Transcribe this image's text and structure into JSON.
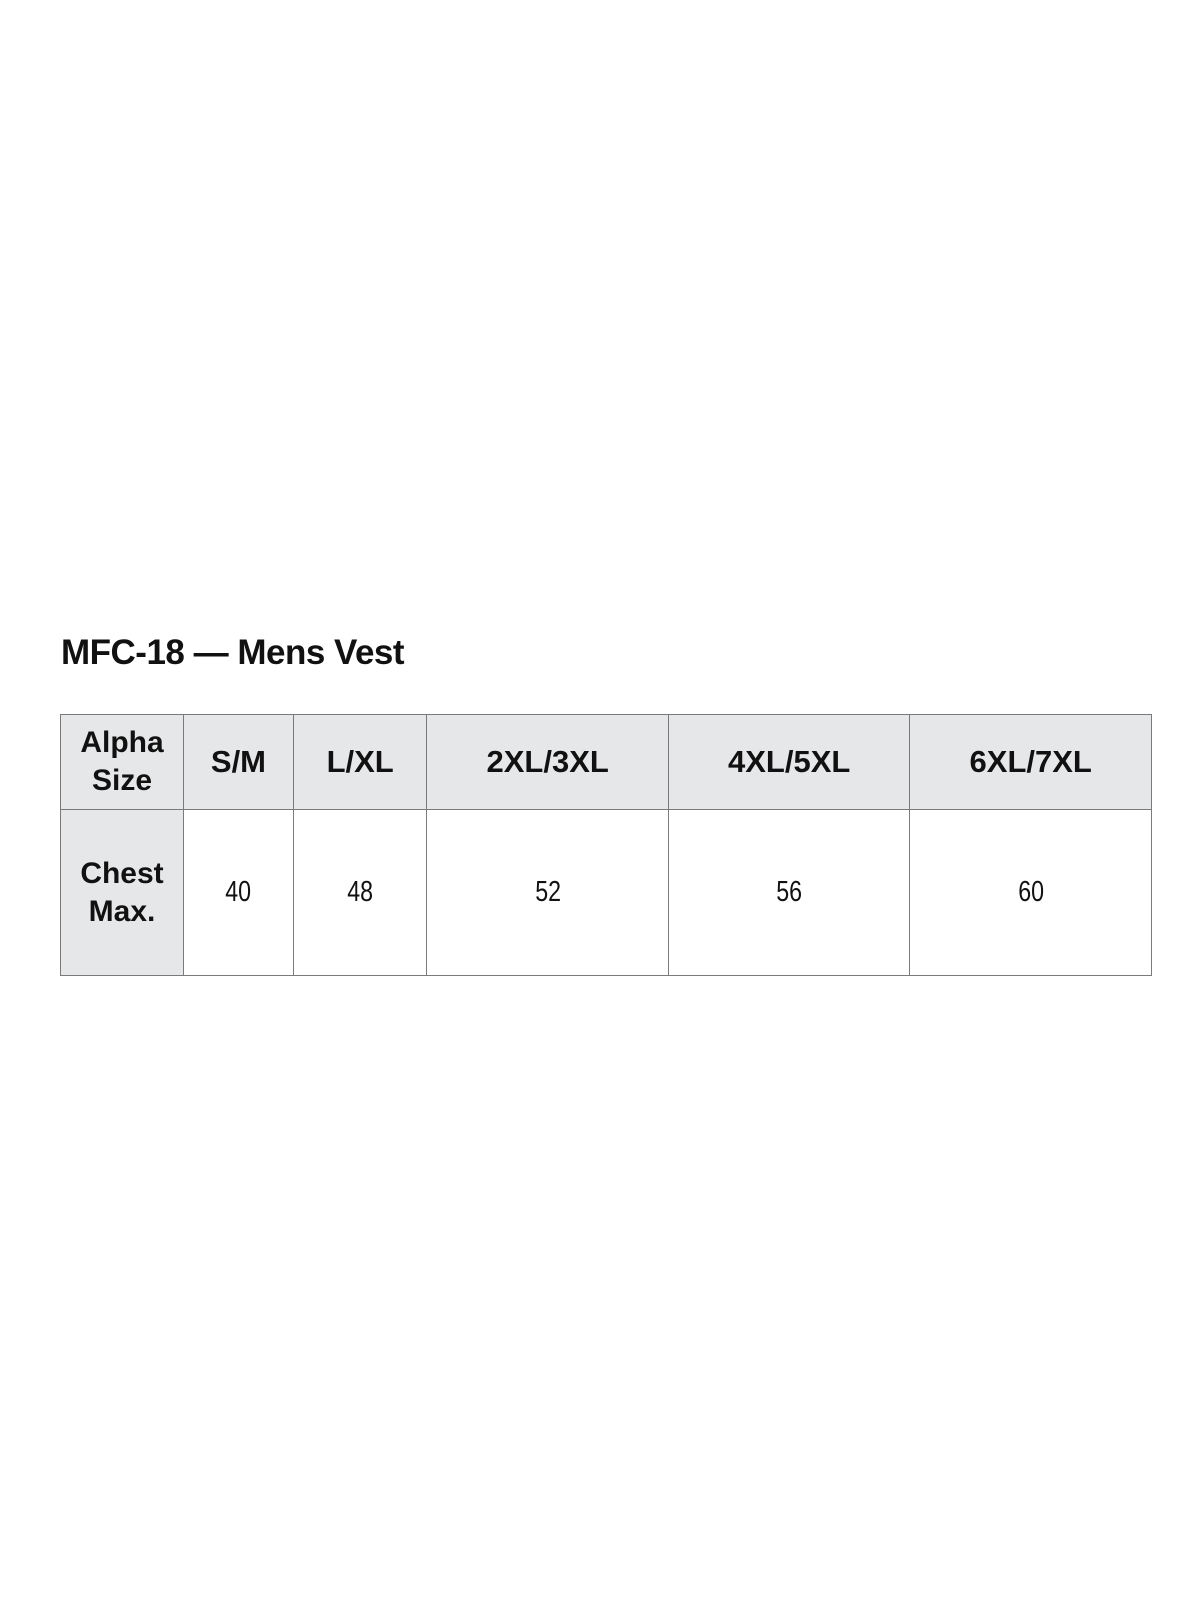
{
  "title": "MFC-18 — Mens Vest",
  "table": {
    "row_headers": [
      "Alpha Size",
      "Chest Max."
    ],
    "sizes": [
      "S/M",
      "L/XL",
      "2XL/3XL",
      "4XL/5XL",
      "6XL/7XL"
    ],
    "chest_max": [
      "40",
      "48",
      "52",
      "56",
      "60"
    ]
  },
  "colors": {
    "header_bg": "#e6e7e9",
    "border": "#7a7a7a"
  }
}
